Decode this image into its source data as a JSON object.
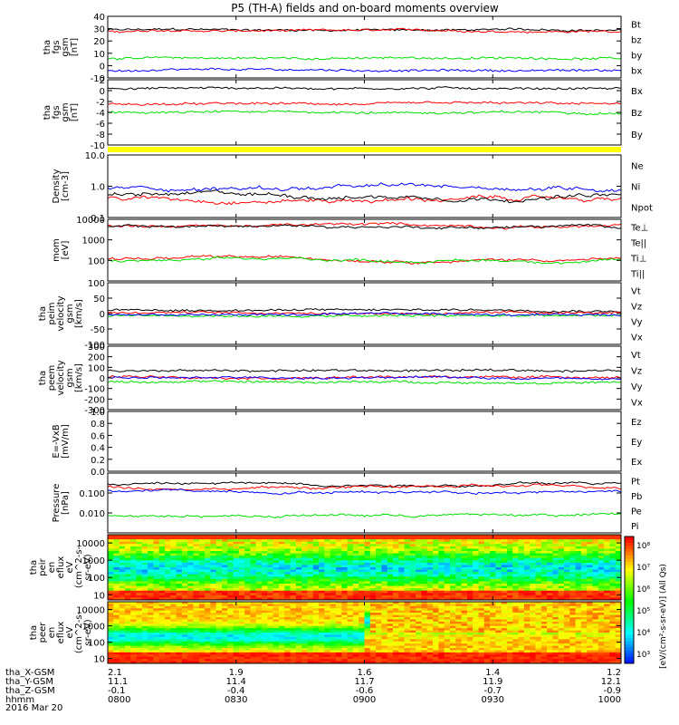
{
  "title": "P5 (TH-A) fields and on-board moments overview",
  "date": "2016 Mar 20",
  "colors": {
    "black": "#000000",
    "red": "#ff0000",
    "green": "#00dd00",
    "blue": "#0000ff",
    "yellow": "#ffff00"
  },
  "x_axis": {
    "row_labels": [
      "tha_X-GSM",
      "tha_Y-GSM",
      "tha_Z-GSM",
      "hhmm"
    ],
    "ticks": [
      {
        "time": "0800",
        "rows": [
          "2.1",
          "11.1",
          "-0.1",
          "0800"
        ]
      },
      {
        "time": "0830",
        "rows": [
          "1.9",
          "11.4",
          "-0.4",
          "0830"
        ]
      },
      {
        "time": "0900",
        "rows": [
          "1.6",
          "11.7",
          "-0.6",
          "0900"
        ]
      },
      {
        "time": "0930",
        "rows": [
          "1.4",
          "11.9",
          "-0.7",
          "0930"
        ]
      },
      {
        "time": "1000",
        "rows": [
          "1.2",
          "12.1",
          "-0.9",
          "1000"
        ]
      }
    ]
  },
  "chart_data": [
    {
      "type": "line",
      "ylabel": [
        "tha",
        "fgs",
        "gsm",
        "[nT]"
      ],
      "ylim": [
        -10,
        40
      ],
      "yticks": [
        "40",
        "30",
        "20",
        "10",
        "0",
        "-10"
      ],
      "series": [
        {
          "name": "Bt",
          "color": "#000000",
          "level": 29
        },
        {
          "name": "bz",
          "color": "#ff0000",
          "level": 28
        },
        {
          "name": "by",
          "color": "#00dd00",
          "level": 6
        },
        {
          "name": "bx",
          "color": "#0000ff",
          "level": -4
        }
      ]
    },
    {
      "type": "line",
      "ylabel": [
        "tha",
        "fgs",
        "gsm",
        "[nT]"
      ],
      "ylim": [
        -10,
        2
      ],
      "yticks": [
        "2",
        "0",
        "-2",
        "-4",
        "-6",
        "-8",
        "-10"
      ],
      "series": [
        {
          "name": "Bx",
          "color": "#000000",
          "level": 0.5
        },
        {
          "name": "Bz",
          "color": "#ff0000",
          "level": -2.5
        },
        {
          "name": "By",
          "color": "#00dd00",
          "level": -4
        }
      ]
    },
    {
      "type": "line",
      "ylabel": [
        "Density",
        "[cm-3]"
      ],
      "ylim": [
        0.1,
        10
      ],
      "log": true,
      "yticks": [
        "10.0",
        "1.0",
        "0.1"
      ],
      "series": [
        {
          "name": "Ne",
          "color": "#ff0000",
          "level": 0.4
        },
        {
          "name": "Ni",
          "color": "#000000",
          "level": 0.5
        },
        {
          "name": "Npot",
          "color": "#0000ff",
          "level": 0.9
        }
      ]
    },
    {
      "type": "line",
      "ylabel": [
        "mom",
        "[eV]"
      ],
      "ylim": [
        10,
        10000
      ],
      "log": true,
      "yticks": [
        "10000",
        "1000",
        "100"
      ],
      "series": [
        {
          "name": "Te⊥",
          "color": "#ff0000",
          "level": 5000
        },
        {
          "name": "Te||",
          "color": "#000000",
          "level": 4500
        },
        {
          "name": "Ti⊥",
          "color": "#ff0000",
          "level": 120
        },
        {
          "name": "Ti||",
          "color": "#00dd00",
          "level": 100
        }
      ]
    },
    {
      "type": "line",
      "ylabel": [
        "tha",
        "peim",
        "velocity",
        "gsm",
        "[km/s]"
      ],
      "ylim": [
        -100,
        100
      ],
      "yticks": [
        "100",
        "50",
        "0",
        "-50",
        "-100"
      ],
      "series": [
        {
          "name": "Vt",
          "color": "#000000",
          "level": 12
        },
        {
          "name": "Vz",
          "color": "#ff0000",
          "level": 2
        },
        {
          "name": "Vy",
          "color": "#00dd00",
          "level": -8
        },
        {
          "name": "Vx",
          "color": "#0000ff",
          "level": -3
        }
      ]
    },
    {
      "type": "line",
      "ylabel": [
        "tha",
        "peem",
        "velocity",
        "gsm",
        "[km/s]"
      ],
      "ylim": [
        -300,
        300
      ],
      "yticks": [
        "300",
        "200",
        "100",
        "0",
        "-100",
        "-200",
        "-300"
      ],
      "series": [
        {
          "name": "Vt",
          "color": "#000000",
          "level": 70
        },
        {
          "name": "Vz",
          "color": "#ff0000",
          "level": 10
        },
        {
          "name": "Vy",
          "color": "#00dd00",
          "level": -40
        },
        {
          "name": "Vx",
          "color": "#0000ff",
          "level": 0
        }
      ]
    },
    {
      "type": "line",
      "ylabel": [
        "E=-VxB",
        "[mV/m]"
      ],
      "ylim": [
        0,
        1
      ],
      "yticks": [
        "1.0",
        "0.8",
        "0.6",
        "0.4",
        "0.2",
        "0.0"
      ],
      "series": [
        {
          "name": "Ez",
          "color": "#ff0000"
        },
        {
          "name": "Ey",
          "color": "#00dd00"
        },
        {
          "name": "Ex",
          "color": "#0000ff"
        }
      ]
    },
    {
      "type": "line",
      "ylabel": [
        "Pressure",
        "[nPa]"
      ],
      "ylim": [
        0.001,
        1
      ],
      "log": true,
      "yticks": [
        "0.100",
        "0.010"
      ],
      "series": [
        {
          "name": "Pt",
          "color": "#000000",
          "level": 0.3
        },
        {
          "name": "Pb",
          "color": "#ff0000",
          "level": 0.2
        },
        {
          "name": "Pe",
          "color": "#00dd00",
          "level": 0.008
        },
        {
          "name": "Pi",
          "color": "#0000ff",
          "level": 0.13
        }
      ]
    },
    {
      "type": "heatmap",
      "ylabel": [
        "tha",
        "peir",
        "en",
        "eflux",
        "eV",
        "(cm^2-s-",
        "sr-eV)"
      ],
      "ylim": [
        5,
        30000
      ],
      "log": true,
      "yticks": [
        "10000",
        "1000",
        "100",
        "10"
      ]
    },
    {
      "type": "heatmap",
      "ylabel": [
        "tha",
        "peer",
        "en",
        "eflux",
        "eV",
        "(cm^2-s-",
        "sr-eV)"
      ],
      "ylim": [
        5,
        30000
      ],
      "log": true,
      "yticks": [
        "10000",
        "1000",
        "100",
        "10"
      ]
    }
  ],
  "colorbar": {
    "title": "[eV/(cm²-s-sr-eV)] (All Qs)",
    "ticks": [
      "10⁸",
      "10⁷",
      "10⁶",
      "10⁵",
      "10⁴",
      "10³"
    ]
  }
}
